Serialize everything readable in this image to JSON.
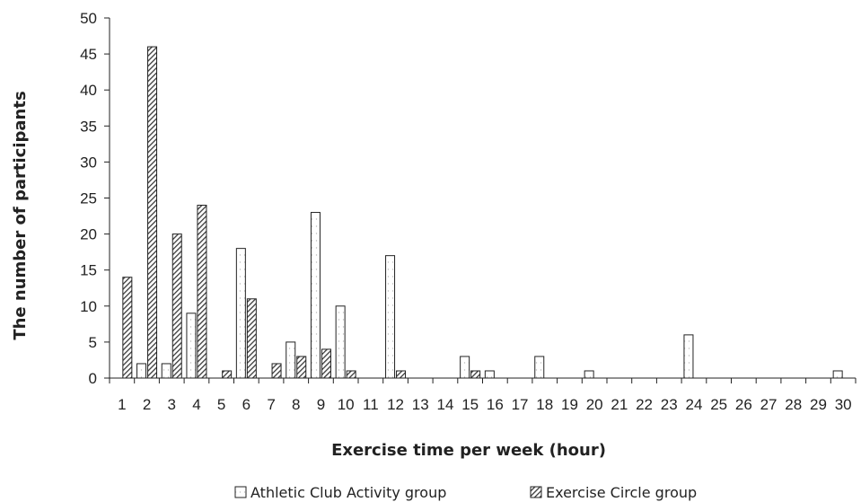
{
  "chart_data": {
    "type": "bar",
    "title": "",
    "xlabel": "Exercise time per week (hour)",
    "ylabel": "The number of participants",
    "ylim": [
      0,
      50
    ],
    "yticks": [
      0,
      5,
      10,
      15,
      20,
      25,
      30,
      35,
      40,
      45,
      50
    ],
    "grid": false,
    "legend_position": "bottom",
    "categories": [
      "1",
      "2",
      "3",
      "4",
      "5",
      "6",
      "7",
      "8",
      "9",
      "10",
      "11",
      "12",
      "13",
      "14",
      "15",
      "16",
      "17",
      "18",
      "19",
      "20",
      "21",
      "22",
      "23",
      "24",
      "25",
      "26",
      "27",
      "28",
      "29",
      "30"
    ],
    "series": [
      {
        "name": "Athletic Club Activity group",
        "pattern": "dotted-white",
        "values": [
          0,
          2,
          2,
          9,
          0,
          18,
          0,
          5,
          23,
          10,
          0,
          17,
          0,
          0,
          3,
          1,
          0,
          3,
          0,
          1,
          0,
          0,
          0,
          6,
          0,
          0,
          0,
          0,
          0,
          1
        ]
      },
      {
        "name": "Exercise Circle group",
        "pattern": "diagonal-hatch",
        "values": [
          14,
          46,
          20,
          24,
          1,
          11,
          2,
          3,
          4,
          1,
          0,
          1,
          0,
          0,
          1,
          0,
          0,
          0,
          0,
          0,
          0,
          0,
          0,
          0,
          0,
          0,
          0,
          0,
          0,
          0
        ]
      }
    ],
    "colors": {
      "stroke": "#222222",
      "fill": "#ffffff",
      "hatch": "#444444"
    }
  }
}
